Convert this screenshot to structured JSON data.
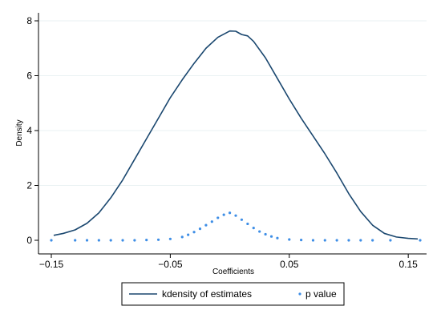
{
  "chart_data": {
    "type": "line",
    "xlabel": "Coefficients",
    "ylabel": "Density",
    "xlim": [
      -0.15,
      0.16
    ],
    "ylim": [
      0,
      8
    ],
    "x_ticks": [
      -0.15,
      -0.05,
      0.05,
      0.15
    ],
    "x_tick_labels": [
      "−0.15",
      "−0.05",
      "0.05",
      "0.15"
    ],
    "y_ticks": [
      0,
      2,
      4,
      6,
      8
    ],
    "y_tick_labels": [
      "0",
      "2",
      "4",
      "6",
      "8"
    ],
    "grid": "horizontal",
    "legend_position": "bottom",
    "colors": {
      "kdensity": "#1a476f",
      "pvalue": "#3e8ee6",
      "grid": "#eaf2f3"
    },
    "series": [
      {
        "name": "kdensity of estimates",
        "kind": "line",
        "x": [
          -0.148,
          -0.14,
          -0.13,
          -0.12,
          -0.11,
          -0.1,
          -0.09,
          -0.08,
          -0.07,
          -0.06,
          -0.05,
          -0.04,
          -0.03,
          -0.02,
          -0.01,
          0.0,
          0.005,
          0.01,
          0.015,
          0.02,
          0.03,
          0.04,
          0.05,
          0.06,
          0.07,
          0.08,
          0.09,
          0.1,
          0.11,
          0.12,
          0.13,
          0.14,
          0.15,
          0.158
        ],
        "y": [
          0.18,
          0.25,
          0.38,
          0.62,
          1.0,
          1.55,
          2.2,
          2.95,
          3.7,
          4.45,
          5.2,
          5.85,
          6.45,
          7.0,
          7.4,
          7.63,
          7.62,
          7.5,
          7.45,
          7.25,
          6.65,
          5.9,
          5.15,
          4.45,
          3.8,
          3.15,
          2.45,
          1.7,
          1.05,
          0.55,
          0.25,
          0.12,
          0.07,
          0.05
        ]
      },
      {
        "name": "p value",
        "kind": "scatter",
        "x": [
          -0.15,
          -0.13,
          -0.12,
          -0.11,
          -0.1,
          -0.09,
          -0.08,
          -0.07,
          -0.06,
          -0.05,
          -0.04,
          -0.035,
          -0.03,
          -0.025,
          -0.02,
          -0.015,
          -0.01,
          -0.005,
          0.0,
          0.005,
          0.01,
          0.015,
          0.02,
          0.025,
          0.03,
          0.035,
          0.04,
          0.05,
          0.06,
          0.07,
          0.08,
          0.09,
          0.1,
          0.11,
          0.12,
          0.135,
          0.16
        ],
        "y": [
          0.0,
          0.0,
          0.0,
          0.0,
          0.0,
          0.0,
          0.0,
          0.01,
          0.02,
          0.05,
          0.12,
          0.2,
          0.3,
          0.42,
          0.55,
          0.68,
          0.82,
          0.93,
          1.0,
          0.9,
          0.75,
          0.6,
          0.45,
          0.32,
          0.22,
          0.14,
          0.08,
          0.03,
          0.01,
          0.0,
          0.0,
          0.0,
          0.0,
          0.0,
          0.0,
          0.0,
          0.0
        ]
      }
    ]
  }
}
